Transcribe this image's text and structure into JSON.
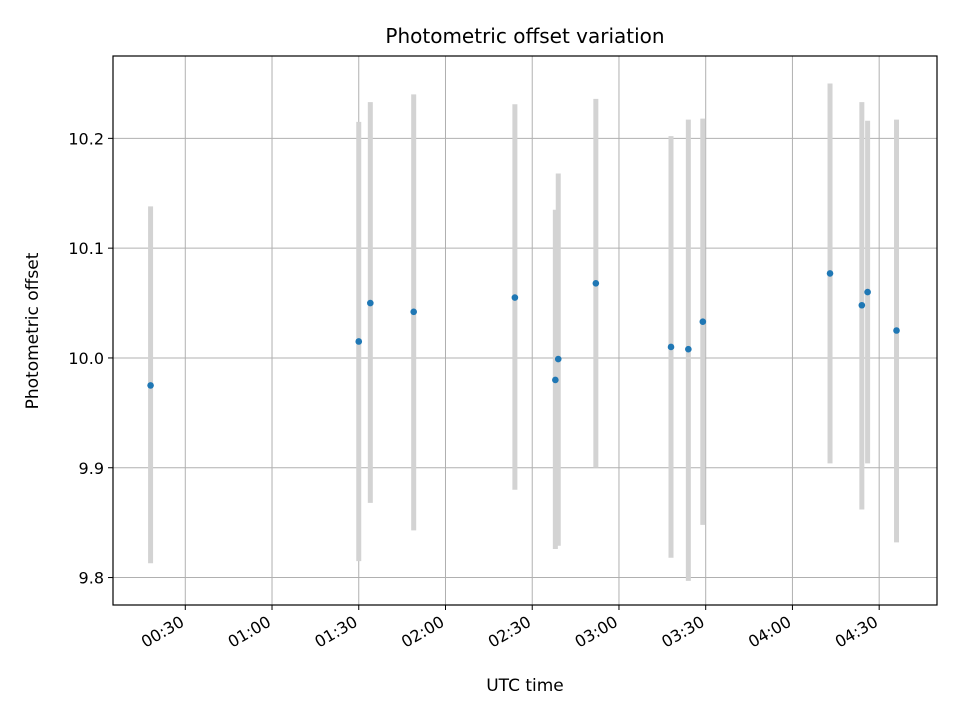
{
  "chart_data": {
    "type": "scatter",
    "title": "Photometric offset variation",
    "xlabel": "UTC time",
    "ylabel": "Photometric offset",
    "x_unit": "UTC time (HH:MM)",
    "xlim": [
      "00:05",
      "04:50"
    ],
    "ylim": [
      9.775,
      10.275
    ],
    "xticks": [
      "00:30",
      "01:00",
      "01:30",
      "02:00",
      "02:30",
      "03:00",
      "03:30",
      "04:00",
      "04:30"
    ],
    "yticks": [
      9.8,
      9.9,
      10.0,
      10.1,
      10.2
    ],
    "ytick_labels": [
      "9.8",
      "9.9",
      "10.0",
      "10.1",
      "10.2"
    ],
    "grid": true,
    "legend": "none",
    "colors": {
      "marker": "#1f77b4",
      "errorbar": "#d3d3d3",
      "grid": "#b0b0b0",
      "axes": "#000000"
    },
    "points": [
      {
        "x": "00:18",
        "y": 9.975,
        "ylow": 9.813,
        "yhigh": 10.138
      },
      {
        "x": "01:30",
        "y": 10.015,
        "ylow": 9.815,
        "yhigh": 10.215
      },
      {
        "x": "01:34",
        "y": 10.05,
        "ylow": 9.868,
        "yhigh": 10.233
      },
      {
        "x": "01:49",
        "y": 10.042,
        "ylow": 9.843,
        "yhigh": 10.24
      },
      {
        "x": "02:24",
        "y": 10.055,
        "ylow": 9.88,
        "yhigh": 10.231
      },
      {
        "x": "02:38",
        "y": 9.98,
        "ylow": 9.826,
        "yhigh": 10.135
      },
      {
        "x": "02:39",
        "y": 9.999,
        "ylow": 9.829,
        "yhigh": 10.168
      },
      {
        "x": "02:52",
        "y": 10.068,
        "ylow": 9.9,
        "yhigh": 10.236
      },
      {
        "x": "03:18",
        "y": 10.01,
        "ylow": 9.818,
        "yhigh": 10.202
      },
      {
        "x": "03:24",
        "y": 10.008,
        "ylow": 9.797,
        "yhigh": 10.217
      },
      {
        "x": "03:29",
        "y": 10.033,
        "ylow": 9.848,
        "yhigh": 10.218
      },
      {
        "x": "04:13",
        "y": 10.077,
        "ylow": 9.904,
        "yhigh": 10.25
      },
      {
        "x": "04:24",
        "y": 10.048,
        "ylow": 9.862,
        "yhigh": 10.233
      },
      {
        "x": "04:26",
        "y": 10.06,
        "ylow": 9.904,
        "yhigh": 10.216
      },
      {
        "x": "04:36",
        "y": 10.025,
        "ylow": 9.832,
        "yhigh": 10.217
      }
    ]
  }
}
